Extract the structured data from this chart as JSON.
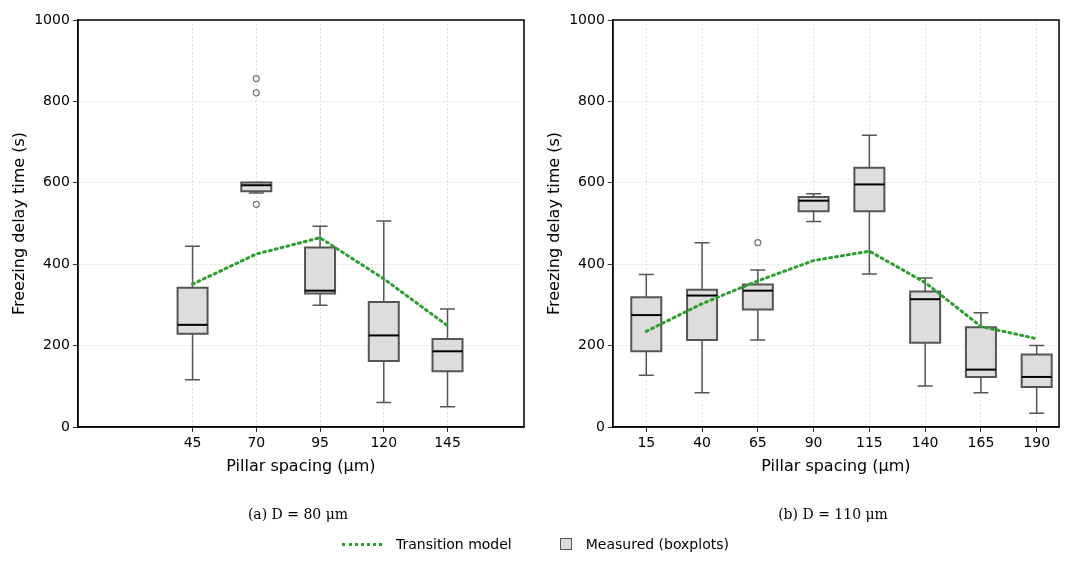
{
  "chart_data": [
    {
      "type": "box",
      "xlabel": "Pillar spacing (µm)",
      "ylabel": "Freezing delay time (s)",
      "xlim": [
        0,
        175
      ],
      "xticks": [
        45,
        70,
        95,
        120,
        145
      ],
      "ylim": [
        0,
        1000
      ],
      "yticks": [
        0,
        200,
        400,
        600,
        800,
        1000
      ],
      "grid": true,
      "legend": "bottom",
      "annotations": [
        "(a) D = 80 μm"
      ],
      "series": [
        {
          "type": "line",
          "name": "Transition model",
          "color": "#2ca02c",
          "line_style": "dotted",
          "marker": "none",
          "x": [
            45,
            70,
            95,
            120,
            145
          ],
          "values": [
            351,
            425,
            465,
            364,
            249
          ]
        },
        {
          "name": "Measured (boxplots)",
          "color": "#dddddd",
          "x": [
            45,
            70,
            95,
            120,
            145
          ],
          "boxes": [
            {
              "low": 116,
              "q1": 229,
              "median": 251,
              "q3": 342,
              "high": 444
            },
            {
              "low": 575,
              "q1": 579,
              "median": 594,
              "q3": 601,
              "high": 601,
              "outliers": [
                856,
                821,
                547
              ]
            },
            {
              "low": 299,
              "q1": 328,
              "median": 335,
              "q3": 441,
              "high": 493
            },
            {
              "low": 60,
              "q1": 162,
              "median": 225,
              "q3": 307,
              "high": 506
            },
            {
              "low": 50,
              "q1": 137,
              "median": 186,
              "q3": 216,
              "high": 290
            }
          ]
        }
      ]
    },
    {
      "type": "box",
      "xlabel": "Pillar spacing (µm)",
      "ylabel": "Freezing delay time (s)",
      "xlim": [
        0,
        200
      ],
      "xticks": [
        15,
        40,
        65,
        90,
        115,
        140,
        165,
        190
      ],
      "ylim": [
        0,
        1000
      ],
      "yticks": [
        0,
        200,
        400,
        600,
        800,
        1000
      ],
      "grid": true,
      "annotations": [
        "(b) D = 110 μm"
      ],
      "series": [
        {
          "type": "line",
          "color": "#2ca02c",
          "line_style": "dotted",
          "marker": "none",
          "x": [
            15,
            40,
            65,
            90,
            115,
            140,
            165,
            190
          ],
          "values": [
            235,
            303,
            359,
            409,
            432,
            355,
            247,
            217
          ]
        },
        {
          "color": "#dddddd",
          "x": [
            15,
            40,
            65,
            90,
            115,
            140,
            165,
            190
          ],
          "boxes": [
            {
              "low": 127,
              "q1": 186,
              "median": 275,
              "q3": 319,
              "high": 375
            },
            {
              "low": 84,
              "q1": 214,
              "median": 323,
              "q3": 337,
              "high": 453
            },
            {
              "low": 214,
              "q1": 289,
              "median": 335,
              "q3": 350,
              "high": 386,
              "outliers": [
                453
              ]
            },
            {
              "low": 505,
              "q1": 530,
              "median": 556,
              "q3": 565,
              "high": 573
            },
            {
              "low": 376,
              "q1": 530,
              "median": 596,
              "q3": 637,
              "high": 717
            },
            {
              "low": 101,
              "q1": 207,
              "median": 314,
              "q3": 333,
              "high": 366
            },
            {
              "low": 84,
              "q1": 123,
              "median": 141,
              "q3": 245,
              "high": 281
            },
            {
              "low": 34,
              "q1": 98,
              "median": 123,
              "q3": 178,
              "high": 200
            }
          ]
        }
      ]
    }
  ]
}
